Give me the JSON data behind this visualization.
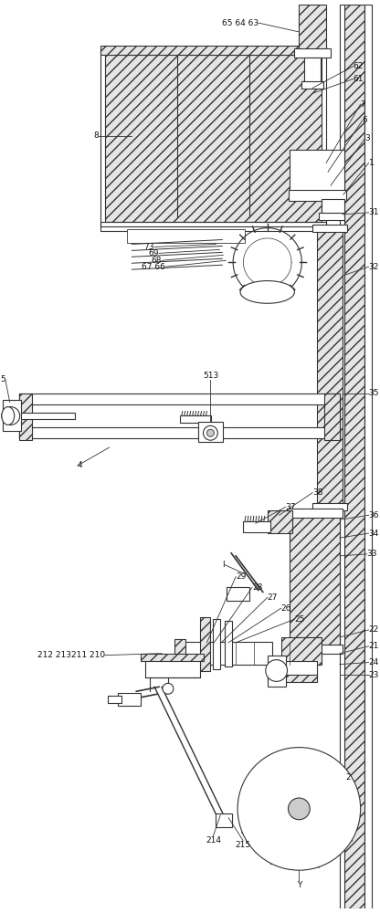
{
  "bg": "#ffffff",
  "lc": "#333333",
  "figsize": [
    4.16,
    10.0
  ],
  "dpi": 100
}
